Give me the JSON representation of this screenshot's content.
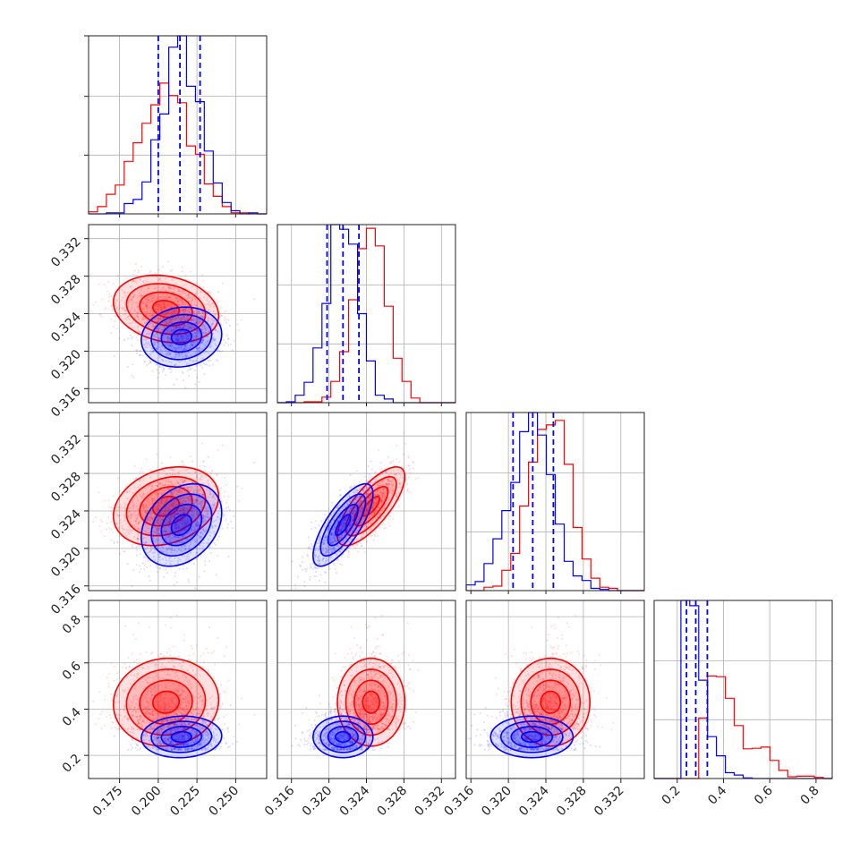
{
  "colors": {
    "series_a": "#ff0000",
    "series_b": "#0000ff",
    "grid": "#b0b0b0",
    "frame": "#222222"
  },
  "chart_data": {
    "type": "corner",
    "grid": true,
    "parameters": [
      {
        "range": [
          0.155,
          0.27
        ],
        "ticks": [
          0.175,
          0.2,
          0.225,
          0.25
        ],
        "tick_labels": [
          "0.175",
          "0.200",
          "0.225",
          "0.250"
        ]
      },
      {
        "range": [
          0.3145,
          0.3335
        ],
        "ticks": [
          0.316,
          0.32,
          0.324,
          0.328,
          0.332
        ],
        "tick_labels": [
          "0.316",
          "0.320",
          "0.324",
          "0.328",
          "0.332"
        ]
      },
      {
        "range": [
          0.3155,
          0.3345
        ],
        "ticks": [
          0.316,
          0.32,
          0.324,
          0.328,
          0.332
        ],
        "tick_labels": [
          "0.316",
          "0.320",
          "0.324",
          "0.328",
          "0.332"
        ]
      },
      {
        "range": [
          0.1,
          0.87
        ],
        "ticks": [
          0.2,
          0.4,
          0.6,
          0.8
        ],
        "tick_labels": [
          "0.2",
          "0.4",
          "0.6",
          "0.8"
        ]
      }
    ],
    "series": [
      {
        "color": "#ff0000",
        "mean": [
          0.205,
          0.3245,
          0.3245,
          0.43
        ],
        "std": [
          0.017,
          0.0018,
          0.0021,
          0.095
        ],
        "corr": [
          [
            1,
            -0.2,
            0.25,
            0.05
          ],
          [
            -0.2,
            1,
            0.75,
            0.0
          ],
          [
            0.25,
            0.75,
            1,
            0.0
          ],
          [
            0.05,
            0.0,
            0.0,
            1
          ]
        ]
      },
      {
        "color": "#0000ff",
        "mean": [
          0.215,
          0.3215,
          0.3225,
          0.28
        ],
        "std": [
          0.013,
          0.0016,
          0.0022,
          0.045
        ],
        "corr": [
          [
            1,
            0.1,
            0.3,
            0.05
          ],
          [
            0.1,
            1,
            0.75,
            0.0
          ],
          [
            0.3,
            0.75,
            1,
            0.0
          ],
          [
            0.05,
            0.0,
            0.0,
            1
          ]
        ]
      }
    ],
    "quantile_lines": {
      "color": "#0000ff",
      "values": [
        [
          0.2,
          0.214,
          0.227
        ],
        [
          0.3198,
          0.3215,
          0.3232
        ],
        [
          0.3205,
          0.3226,
          0.3248
        ],
        [
          0.24,
          0.28,
          0.33
        ]
      ]
    }
  }
}
